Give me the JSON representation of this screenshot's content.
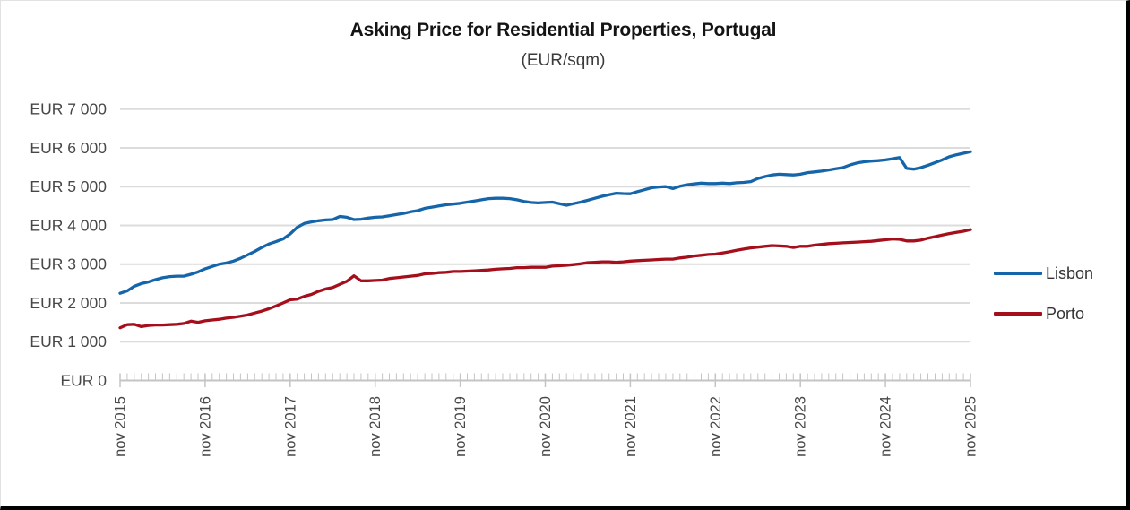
{
  "title": "Asking Price for Residential Properties, Portugal",
  "subtitle": "(EUR/sqm)",
  "colors": {
    "lisbon_line": "#1565ab",
    "porto_line": "#a50f1c",
    "gridline": "#dcdcdc",
    "axis": "#c4c4c4",
    "axis_text": "#474747"
  },
  "chart_data": {
    "type": "line",
    "title": "Asking Price for Residential Properties, Portugal",
    "subtitle": "(EUR/sqm)",
    "x_start": "2015-11",
    "x_end": "2025-11",
    "x_interval": "monthly",
    "x_tick_labels": [
      "nov 2015",
      "nov 2016",
      "nov 2017",
      "nov 2018",
      "nov 2019",
      "nov 2020",
      "nov 2021",
      "nov 2022",
      "nov 2023",
      "nov 2024",
      "nov 2025"
    ],
    "y_tick_labels": [
      "EUR 0",
      "EUR 1 000",
      "EUR 2 000",
      "EUR 3 000",
      "EUR 4 000",
      "EUR 5 000",
      "EUR 6 000",
      "EUR 7 000"
    ],
    "ylim": [
      0,
      7000
    ],
    "y_gridline_step": 1000,
    "grid": "horizontal",
    "legend_position": "right",
    "series": [
      {
        "name": "Lisbon",
        "color": "#1565ab",
        "values": [
          2250,
          2310,
          2430,
          2500,
          2540,
          2600,
          2650,
          2680,
          2690,
          2690,
          2740,
          2800,
          2880,
          2940,
          3000,
          3030,
          3080,
          3150,
          3240,
          3330,
          3430,
          3520,
          3580,
          3650,
          3780,
          3950,
          4050,
          4090,
          4120,
          4140,
          4150,
          4230,
          4210,
          4150,
          4160,
          4190,
          4210,
          4220,
          4250,
          4280,
          4310,
          4350,
          4380,
          4440,
          4470,
          4500,
          4530,
          4550,
          4570,
          4600,
          4630,
          4660,
          4690,
          4700,
          4700,
          4690,
          4660,
          4620,
          4590,
          4580,
          4590,
          4600,
          4560,
          4520,
          4560,
          4600,
          4650,
          4700,
          4750,
          4790,
          4830,
          4820,
          4815,
          4870,
          4920,
          4970,
          4990,
          5000,
          4950,
          5010,
          5050,
          5070,
          5090,
          5080,
          5080,
          5090,
          5080,
          5100,
          5110,
          5130,
          5210,
          5260,
          5300,
          5320,
          5310,
          5300,
          5320,
          5360,
          5380,
          5400,
          5430,
          5460,
          5490,
          5560,
          5610,
          5640,
          5660,
          5670,
          5690,
          5720,
          5750,
          5470,
          5450,
          5490,
          5550,
          5620,
          5690,
          5770,
          5820,
          5860,
          5900
        ]
      },
      {
        "name": "Porto",
        "color": "#a50f1c",
        "values": [
          1360,
          1440,
          1450,
          1390,
          1420,
          1430,
          1430,
          1440,
          1450,
          1470,
          1530,
          1500,
          1540,
          1560,
          1580,
          1610,
          1630,
          1660,
          1690,
          1740,
          1790,
          1850,
          1920,
          2000,
          2080,
          2100,
          2170,
          2220,
          2300,
          2360,
          2400,
          2480,
          2560,
          2700,
          2570,
          2570,
          2580,
          2590,
          2630,
          2650,
          2670,
          2690,
          2710,
          2750,
          2760,
          2780,
          2790,
          2810,
          2810,
          2820,
          2830,
          2840,
          2850,
          2870,
          2880,
          2890,
          2910,
          2910,
          2920,
          2920,
          2920,
          2950,
          2960,
          2970,
          2990,
          3010,
          3040,
          3050,
          3060,
          3060,
          3050,
          3060,
          3080,
          3090,
          3100,
          3110,
          3120,
          3130,
          3130,
          3160,
          3180,
          3210,
          3230,
          3250,
          3260,
          3290,
          3320,
          3360,
          3390,
          3420,
          3440,
          3460,
          3480,
          3470,
          3460,
          3430,
          3460,
          3460,
          3490,
          3510,
          3530,
          3540,
          3550,
          3560,
          3570,
          3580,
          3590,
          3610,
          3630,
          3650,
          3640,
          3600,
          3600,
          3620,
          3670,
          3710,
          3750,
          3790,
          3820,
          3850,
          3890
        ]
      }
    ]
  }
}
